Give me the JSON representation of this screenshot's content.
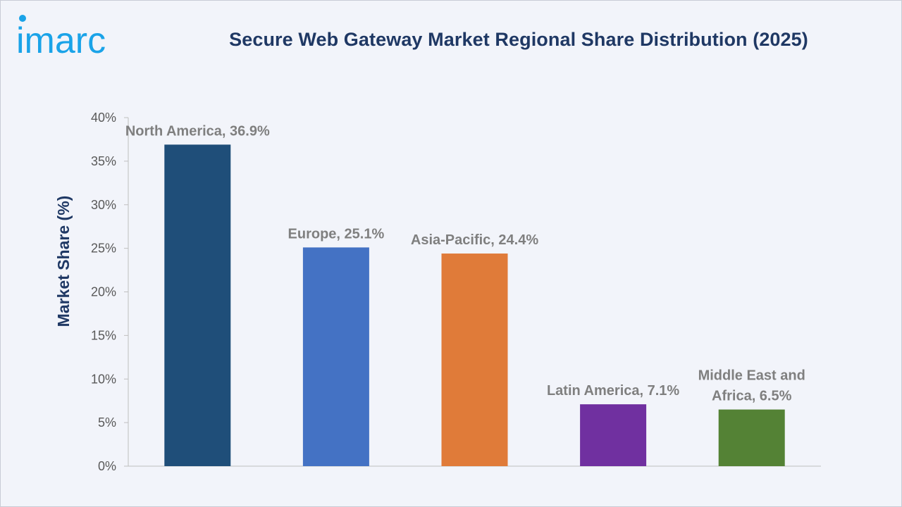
{
  "brand": {
    "logo_text": "imarc",
    "logo_color": "#1aa3e8"
  },
  "chart_data": {
    "type": "bar",
    "title": "Secure Web Gateway Market Regional Share Distribution (2025)",
    "xlabel": "",
    "ylabel": "Market Share (%)",
    "ylim": [
      0,
      40
    ],
    "yticks": [
      "0%",
      "5%",
      "10%",
      "15%",
      "20%",
      "25%",
      "30%",
      "35%",
      "40%"
    ],
    "grid": false,
    "categories": [
      "North America",
      "Europe",
      "Asia-Pacific",
      "Latin America",
      "Middle East and Africa"
    ],
    "values": [
      36.9,
      25.1,
      24.4,
      7.1,
      6.5
    ],
    "data_labels": [
      [
        "North America, 36.9%"
      ],
      [
        "Europe, 25.1%"
      ],
      [
        "Asia-Pacific, 24.4%"
      ],
      [
        "Latin America, 7.1%"
      ],
      [
        "Middle East and",
        "Africa, 6.5%"
      ]
    ],
    "colors": [
      "#1f4e79",
      "#4472c4",
      "#e07b39",
      "#7030a0",
      "#548235"
    ]
  }
}
